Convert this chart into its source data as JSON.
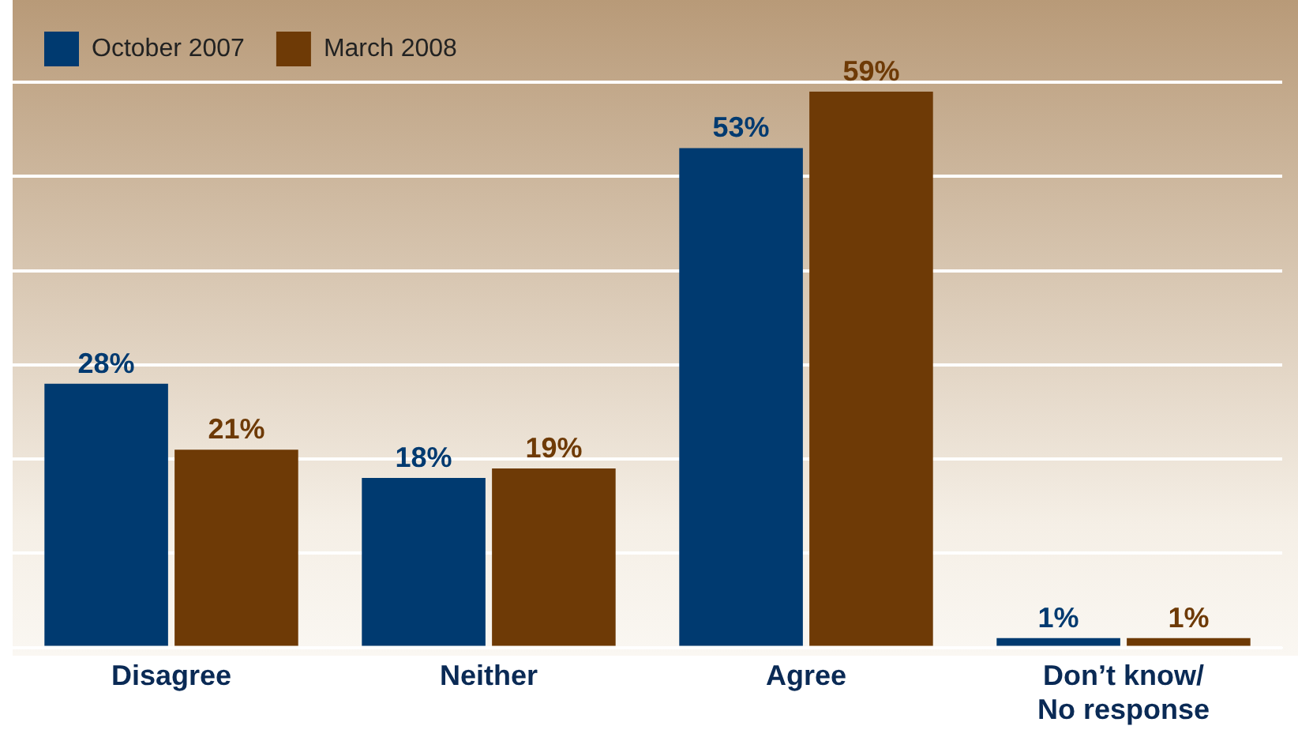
{
  "chart_data": {
    "type": "bar",
    "categories": [
      "Disagree",
      "Neither",
      "Agree",
      "Don’t know/ No response"
    ],
    "series": [
      {
        "name": "October 2007",
        "color": "#003a70",
        "values": [
          28,
          18,
          53,
          1
        ],
        "value_labels": [
          "28%",
          "18%",
          "53%",
          "1%"
        ]
      },
      {
        "name": "March 2008",
        "color": "#6e3a06",
        "values": [
          21,
          19,
          59,
          1
        ],
        "value_labels": [
          "21%",
          "19%",
          "59%",
          "1%"
        ]
      }
    ],
    "grid": "y",
    "tick_labels": "x",
    "legend": "top left"
  }
}
